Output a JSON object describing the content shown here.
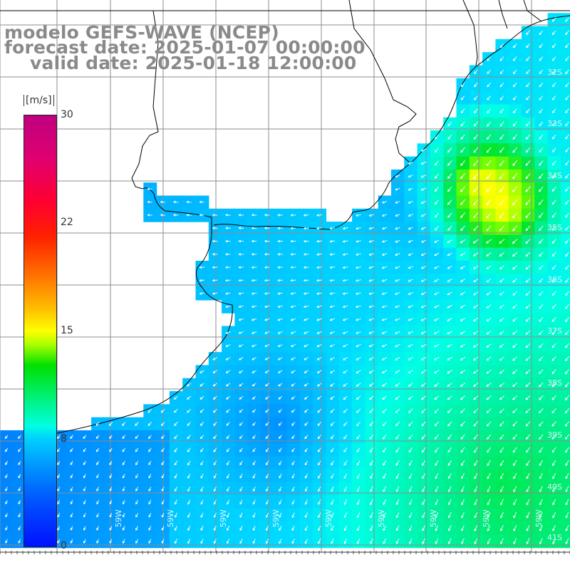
{
  "title": {
    "line1": "modelo GEFS-WAVE (NCEP)",
    "line2": "forecast date: 2025-01-07 00:00:00",
    "line3": "valid date: 2025-01-18 12:00:00"
  },
  "colorbar": {
    "unit": "[m/s]",
    "ticks": [
      "30",
      "22",
      "15",
      "8",
      "0"
    ],
    "min": 0,
    "max": 30
  },
  "axes": {
    "lon_labels": [
      "59W",
      "59W",
      "59W",
      "59W",
      "59W",
      "59W",
      "59W",
      "59W",
      "59W"
    ],
    "lat_labels": [
      "32S",
      "33S",
      "34S",
      "35S",
      "36S",
      "37S",
      "38S",
      "39S",
      "40S",
      "41S"
    ]
  },
  "colors": {
    "land": "#ffffff",
    "grid": "#888888",
    "arrows": "#ffffff",
    "title_text": "#8a8a8a",
    "coastline": "#000000"
  }
}
